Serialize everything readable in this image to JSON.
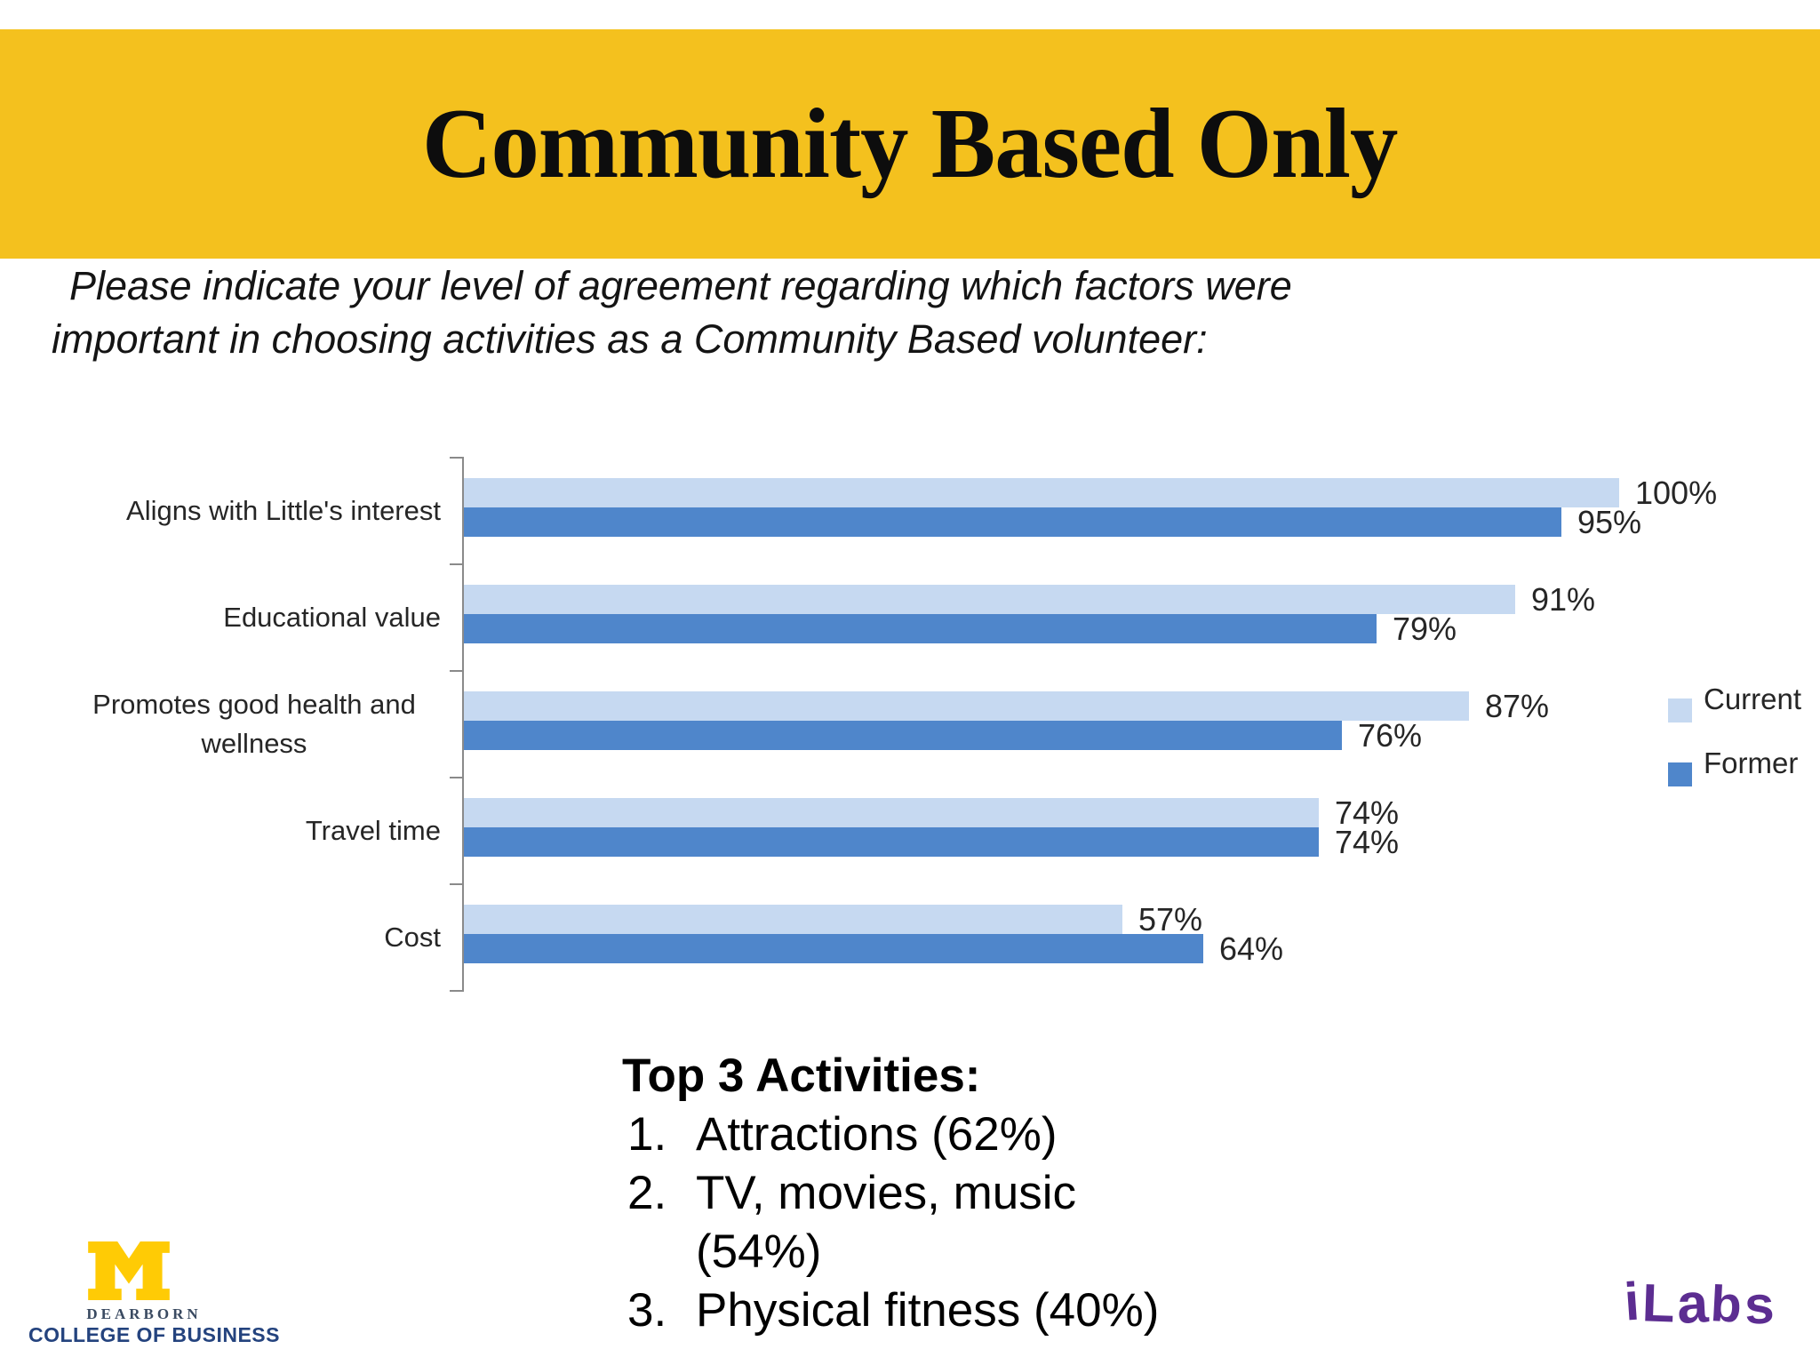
{
  "slide": {
    "title": "Community Based Only",
    "subtitle_line1": "Please indicate your level of agreement regarding which factors were",
    "subtitle_line2": "important in choosing activities as a Community Based volunteer:",
    "banner_color": "#F4C11E"
  },
  "chart_data": {
    "type": "bar",
    "orientation": "horizontal",
    "title": "",
    "categories": [
      "Aligns with Little's interest",
      "Educational value",
      "Promotes good health and wellness",
      "Travel time",
      "Cost"
    ],
    "series": [
      {
        "name": "Current",
        "color": "#C6D9F1",
        "values": [
          100,
          91,
          87,
          74,
          57
        ]
      },
      {
        "name": "Former",
        "color": "#4F86CB",
        "values": [
          95,
          79,
          76,
          74,
          64
        ]
      }
    ],
    "value_label_suffix": "%",
    "xlim": [
      0,
      100
    ],
    "gridlines": false,
    "legend_position": "right",
    "axis_color": "#8a8a8a"
  },
  "top3": {
    "heading": "Top 3 Activities:",
    "items": [
      {
        "lines": [
          "Attractions (62%)"
        ]
      },
      {
        "lines": [
          "TV, movies, music",
          "(54%)"
        ]
      },
      {
        "lines": [
          "Physical fitness (40%)"
        ]
      }
    ]
  },
  "footer": {
    "umd_logo": {
      "campus": "DEARBORN",
      "college": "COLLEGE OF BUSINESS",
      "m_color": "#FFCB05",
      "navy": "#24437E"
    },
    "ilabs_logo": {
      "text": "iLabs",
      "color": "#5C2D91"
    }
  }
}
